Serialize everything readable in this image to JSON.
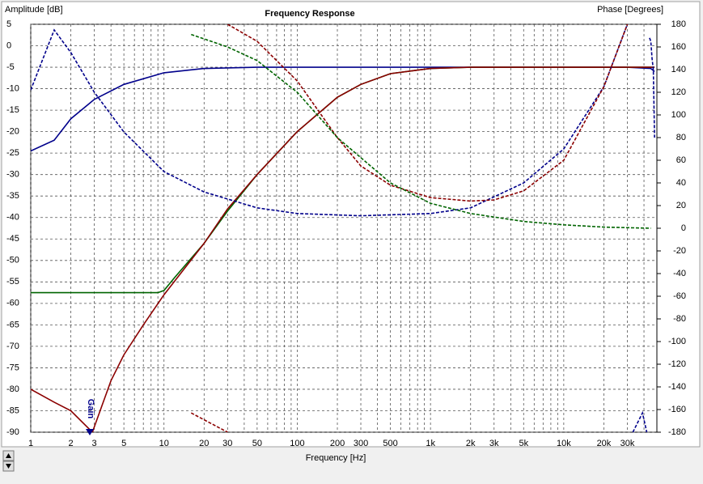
{
  "chart_data": {
    "type": "line",
    "title": "Frequency Response",
    "ylabel": "Amplitude [dB]",
    "y2label": "Phase [Degrees]",
    "xlabel": "Frequency [Hz]",
    "annotation": "Gain",
    "log_x": true,
    "grid": true,
    "xlim": [
      1,
      50000
    ],
    "ylim": [
      -90,
      5
    ],
    "y2lim": [
      -180,
      180
    ],
    "xticks": [
      1,
      2,
      3,
      5,
      10,
      20,
      30,
      50,
      100,
      200,
      300,
      500,
      {
        "value": 1000,
        "label": "1k"
      },
      {
        "value": 2000,
        "label": "2k"
      },
      {
        "value": 3000,
        "label": "3k"
      },
      {
        "value": 5000,
        "label": "5k"
      },
      {
        "value": 10000,
        "label": "10k"
      },
      {
        "value": 20000,
        "label": "20k"
      },
      {
        "value": 30000,
        "label": "30k"
      }
    ],
    "xgrid_minor": [
      4,
      6,
      7,
      8,
      9,
      40,
      60,
      70,
      80,
      90,
      400,
      600,
      700,
      800,
      900,
      4000,
      6000,
      7000,
      8000,
      9000,
      40000
    ],
    "yticks": [
      5,
      0,
      -5,
      -10,
      -15,
      -20,
      -25,
      -30,
      -35,
      -40,
      -45,
      -50,
      -55,
      -60,
      -65,
      -70,
      -75,
      -80,
      -85,
      -90
    ],
    "y2ticks": [
      180,
      160,
      140,
      120,
      100,
      80,
      60,
      40,
      20,
      0,
      -20,
      -40,
      -60,
      -80,
      -100,
      -120,
      -140,
      -160,
      -180
    ],
    "series": [
      {
        "axis": "y",
        "color": "#00008b",
        "dashed": false,
        "x": [
          1,
          1.5,
          2,
          3,
          5,
          10,
          20,
          50,
          1000,
          10000,
          30000,
          45000,
          48000
        ],
        "values": [
          -24.5,
          -22,
          -17,
          -12.5,
          -9,
          -6.3,
          -5.3,
          -5,
          -5,
          -5,
          -5,
          -5.3,
          -6
        ]
      },
      {
        "axis": "y",
        "color": "#006400",
        "dashed": false,
        "x": [
          1,
          9,
          10,
          12,
          20,
          30,
          50,
          100,
          200,
          300,
          500,
          1000,
          2000,
          48000
        ],
        "values": [
          -57.5,
          -57.5,
          -57,
          -54,
          -46,
          -38.5,
          -30,
          -20,
          -12,
          -9,
          -6.5,
          -5.3,
          -5,
          -5
        ]
      },
      {
        "axis": "y",
        "color": "#8b0000",
        "dashed": false,
        "x": [
          1,
          1.5,
          2,
          2.9,
          2.9,
          4,
          5,
          7,
          10,
          20,
          30,
          50,
          100,
          200,
          300,
          500,
          1000,
          2000,
          48000
        ],
        "values": [
          -80,
          -83,
          -85,
          -90,
          -90,
          -78,
          -72,
          -65,
          -58,
          -46,
          -38,
          -30,
          -20,
          -12,
          -9,
          -6.5,
          -5.3,
          -5,
          -5
        ]
      },
      {
        "axis": "y2",
        "color": "#00008b",
        "dashed": true,
        "x": [
          1,
          1.5,
          2,
          3,
          5,
          10,
          20,
          50,
          100,
          300,
          1000,
          2000,
          5000,
          10000,
          20000,
          30000,
          null,
          44000,
          45000,
          46000,
          47000,
          48000,
          null,
          33000,
          39000,
          42000
        ],
        "values": [
          122,
          175,
          155,
          120,
          85,
          50,
          32,
          18,
          13,
          11,
          13,
          18,
          40,
          70,
          125,
          180,
          null,
          168,
          165,
          150,
          140,
          80,
          null,
          -180,
          -163,
          -180
        ]
      },
      {
        "axis": "y2",
        "color": "#8b0000",
        "dashed": true,
        "x": [
          30,
          50,
          100,
          200,
          300,
          500,
          1000,
          2000,
          3000,
          5000,
          10000,
          20000,
          30000,
          null,
          16,
          30
        ],
        "values": [
          180,
          165,
          130,
          80,
          55,
          38,
          27,
          24,
          25,
          33,
          60,
          125,
          180,
          null,
          -163,
          -180
        ]
      },
      {
        "axis": "y2",
        "color": "#006400",
        "dashed": true,
        "x": [
          16,
          30,
          50,
          100,
          200,
          500,
          1000,
          2000,
          5000,
          10000,
          20000,
          45000
        ],
        "values": [
          171,
          160,
          148,
          120,
          80,
          40,
          22,
          13,
          6,
          3,
          1,
          0
        ]
      }
    ]
  }
}
